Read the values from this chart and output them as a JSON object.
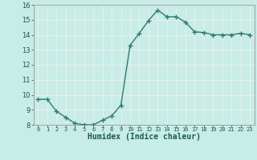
{
  "x": [
    0,
    1,
    2,
    3,
    4,
    5,
    6,
    7,
    8,
    9,
    10,
    11,
    12,
    13,
    14,
    15,
    16,
    17,
    18,
    19,
    20,
    21,
    22,
    23
  ],
  "y": [
    9.7,
    9.7,
    8.9,
    8.5,
    8.1,
    8.0,
    8.0,
    8.3,
    8.6,
    9.3,
    13.3,
    14.1,
    14.95,
    15.65,
    15.2,
    15.2,
    14.85,
    14.2,
    14.15,
    14.0,
    14.0,
    14.0,
    14.1,
    14.0
  ],
  "line_color": "#2d7d6e",
  "marker": "+",
  "marker_size": 4,
  "marker_lw": 1.0,
  "line_width": 1.0,
  "xlabel": "Humidex (Indice chaleur)",
  "bg_color": "#c8ece6",
  "grid_color": "#f0f0f0",
  "xlim": [
    -0.5,
    23.5
  ],
  "ylim": [
    8,
    16
  ],
  "yticks": [
    8,
    9,
    10,
    11,
    12,
    13,
    14,
    15,
    16
  ],
  "xtick_labels": [
    "0",
    "1",
    "2",
    "3",
    "4",
    "5",
    "6",
    "7",
    "8",
    "9",
    "10",
    "11",
    "12",
    "13",
    "14",
    "15",
    "16",
    "17",
    "18",
    "19",
    "20",
    "21",
    "22",
    "23"
  ]
}
